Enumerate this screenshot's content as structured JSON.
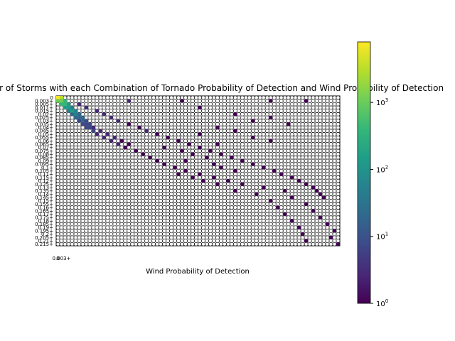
{
  "chart_data": {
    "type": "heatmap",
    "title": "Number of Storms with each Combination of Tornado Probability of Detection and Wind Probability of Detection",
    "xlabel": "Wind Probability of Detection",
    "ylabel": "",
    "y_tick_labels": [
      "0",
      "0.003+",
      "0.005+",
      "0.011+",
      "0.015+",
      "0.02+",
      "0.025+",
      "0.03+",
      "0.035+",
      "0.04+",
      "0.045+",
      "0.05+",
      "0.055+",
      "0.06+",
      "0.065+",
      "0.07+",
      "0.075+",
      "0.08+",
      "0.085+",
      "0.09+",
      "0.095+",
      "0.1+",
      "0.105+",
      "0.11+",
      "0.115+",
      "0.12+",
      "0.125+",
      "0.13+",
      "0.135+",
      "0.14+",
      "0.145+",
      "0.15+",
      "0.155+",
      "0.16+",
      "0.165+",
      "0.17+",
      "0.175+",
      "0.18+",
      "0.185+",
      "0.19+",
      "0.195+",
      "0.2+",
      "0.205+",
      "0.21+",
      "0.215+"
    ],
    "x_tick_labels": [
      "0",
      "0.003+"
    ],
    "colorbar": {
      "scale": "log",
      "range": [
        1,
        8000
      ],
      "ticks": [
        {
          "base": "10",
          "exp": "0",
          "value": 1
        },
        {
          "base": "10",
          "exp": "1",
          "value": 10
        },
        {
          "base": "10",
          "exp": "2",
          "value": 100
        },
        {
          "base": "10",
          "exp": "3",
          "value": 1000
        }
      ],
      "colormap": "viridis",
      "colors": [
        "#440154",
        "#482878",
        "#3e4989",
        "#31688e",
        "#26828e",
        "#1f9e89",
        "#35b779",
        "#6ece58",
        "#b5de2b",
        "#fde725"
      ]
    },
    "n_rows": 45,
    "n_cols": 80,
    "cells": [
      [
        0,
        0,
        8000
      ],
      [
        0,
        1,
        2400
      ],
      [
        1,
        0,
        1500
      ],
      [
        1,
        1,
        900
      ],
      [
        1,
        2,
        400
      ],
      [
        2,
        1,
        350
      ],
      [
        2,
        2,
        300
      ],
      [
        2,
        3,
        200
      ],
      [
        3,
        2,
        120
      ],
      [
        3,
        3,
        150
      ],
      [
        3,
        4,
        80
      ],
      [
        4,
        3,
        60
      ],
      [
        4,
        4,
        90
      ],
      [
        4,
        5,
        40
      ],
      [
        5,
        4,
        30
      ],
      [
        5,
        5,
        45
      ],
      [
        5,
        6,
        25
      ],
      [
        6,
        5,
        20
      ],
      [
        6,
        6,
        30
      ],
      [
        6,
        7,
        15
      ],
      [
        7,
        6,
        12
      ],
      [
        7,
        7,
        18
      ],
      [
        7,
        8,
        10
      ],
      [
        8,
        7,
        8
      ],
      [
        8,
        8,
        12
      ],
      [
        8,
        9,
        6
      ],
      [
        9,
        8,
        5
      ],
      [
        9,
        9,
        8
      ],
      [
        9,
        10,
        4
      ],
      [
        10,
        10,
        5
      ],
      [
        10,
        12,
        3
      ],
      [
        11,
        11,
        4
      ],
      [
        11,
        14,
        2
      ],
      [
        12,
        13,
        3
      ],
      [
        12,
        16,
        2
      ],
      [
        13,
        15,
        2
      ],
      [
        13,
        18,
        1
      ],
      [
        14,
        17,
        2
      ],
      [
        14,
        20,
        1
      ],
      [
        15,
        19,
        1
      ],
      [
        16,
        22,
        1
      ],
      [
        17,
        24,
        1
      ],
      [
        18,
        26,
        1
      ],
      [
        19,
        28,
        1
      ],
      [
        20,
        30,
        1
      ],
      [
        21,
        33,
        1
      ],
      [
        22,
        36,
        1
      ],
      [
        23,
        40,
        1
      ],
      [
        24,
        44,
        1
      ],
      [
        25,
        48,
        1
      ],
      [
        26,
        52,
        1
      ],
      [
        27,
        58,
        1
      ],
      [
        28,
        64,
        1
      ],
      [
        30,
        66,
        1
      ],
      [
        32,
        70,
        1
      ],
      [
        34,
        72,
        1
      ],
      [
        36,
        74,
        1
      ],
      [
        38,
        76,
        1
      ],
      [
        40,
        78,
        1
      ],
      [
        42,
        77,
        1
      ],
      [
        44,
        79,
        1
      ],
      [
        2,
        6,
        3
      ],
      [
        3,
        8,
        2
      ],
      [
        4,
        11,
        2
      ],
      [
        5,
        13,
        3
      ],
      [
        6,
        15,
        2
      ],
      [
        7,
        17,
        2
      ],
      [
        8,
        20,
        1
      ],
      [
        9,
        23,
        1
      ],
      [
        10,
        25,
        2
      ],
      [
        11,
        28,
        1
      ],
      [
        12,
        31,
        1
      ],
      [
        13,
        34,
        1
      ],
      [
        14,
        37,
        1
      ],
      [
        15,
        40,
        1
      ],
      [
        16,
        43,
        1
      ],
      [
        17,
        46,
        1
      ],
      [
        18,
        49,
        1
      ],
      [
        19,
        52,
        1
      ],
      [
        20,
        55,
        1
      ],
      [
        21,
        58,
        1
      ],
      [
        22,
        61,
        1
      ],
      [
        23,
        63,
        1
      ],
      [
        24,
        66,
        1
      ],
      [
        25,
        68,
        1
      ],
      [
        26,
        70,
        1
      ],
      [
        27,
        72,
        1
      ],
      [
        28,
        73,
        1
      ],
      [
        29,
        74,
        1
      ],
      [
        30,
        75,
        1
      ],
      [
        1,
        20,
        2
      ],
      [
        1,
        35,
        1
      ],
      [
        1,
        60,
        1
      ],
      [
        1,
        70,
        1
      ],
      [
        3,
        40,
        1
      ],
      [
        5,
        50,
        1
      ],
      [
        6,
        60,
        1
      ],
      [
        7,
        55,
        1
      ],
      [
        8,
        65,
        1
      ],
      [
        9,
        45,
        1
      ],
      [
        10,
        50,
        1
      ],
      [
        11,
        40,
        1
      ],
      [
        12,
        55,
        1
      ],
      [
        13,
        60,
        1
      ],
      [
        14,
        45,
        1
      ],
      [
        15,
        30,
        1
      ],
      [
        16,
        35,
        1
      ],
      [
        17,
        38,
        1
      ],
      [
        18,
        42,
        1
      ],
      [
        19,
        36,
        1
      ],
      [
        20,
        44,
        1
      ],
      [
        21,
        46,
        1
      ],
      [
        22,
        50,
        1
      ],
      [
        23,
        34,
        1
      ],
      [
        24,
        38,
        1
      ],
      [
        25,
        41,
        1
      ],
      [
        26,
        45,
        1
      ],
      [
        28,
        50,
        1
      ],
      [
        29,
        56,
        1
      ],
      [
        31,
        60,
        1
      ],
      [
        33,
        62,
        1
      ],
      [
        35,
        64,
        1
      ],
      [
        37,
        66,
        1
      ],
      [
        39,
        68,
        1
      ],
      [
        41,
        69,
        1
      ],
      [
        43,
        70,
        1
      ]
    ]
  }
}
